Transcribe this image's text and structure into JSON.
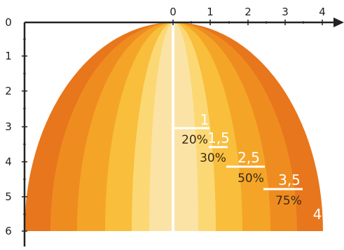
{
  "colors": {
    "background": "#ffffff",
    "axis": "#222222",
    "guide": "#ffffff",
    "label_white": "#ffffff",
    "label_dark": "#3a2a16",
    "bands": [
      "#e8761c",
      "#ef8c20",
      "#f4a528",
      "#f8be3c",
      "#fcd874"
    ],
    "center_band": "#fbe3a6"
  },
  "axes": {
    "x_ticks": [
      "0",
      "1",
      "2",
      "3",
      "4"
    ],
    "y_ticks": [
      "0",
      "1",
      "2",
      "3",
      "4",
      "5",
      "6"
    ]
  },
  "zones": [
    {
      "value": "1",
      "percent": "20%"
    },
    {
      "value": "1,5",
      "percent": "30%"
    },
    {
      "value": "2,5",
      "percent": "50%"
    },
    {
      "value": "3,5",
      "percent": "75%"
    },
    {
      "value": "4",
      "percent": ""
    }
  ]
}
